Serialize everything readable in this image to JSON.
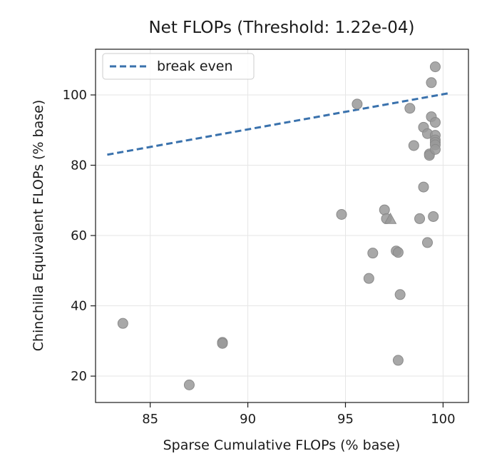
{
  "chart_data": {
    "type": "scatter",
    "title": "Net FLOPs (Threshold: 1.22e-04)",
    "xlabel": "Sparse Cumulative FLOPs (% base)",
    "ylabel": "Chinchilla Equivalent FLOPs (% base)",
    "xlim": [
      82.2,
      101.3
    ],
    "ylim": [
      12.5,
      113
    ],
    "x_ticks": [
      85,
      90,
      95,
      100
    ],
    "y_ticks": [
      20,
      40,
      60,
      80,
      100
    ],
    "grid": true,
    "legend_position": "top-left",
    "colors": {
      "points": "#999999",
      "point_edge": "#8a8a8a",
      "break_even": "#3a72ad",
      "grid": "#e6e6e6"
    },
    "lines": [
      {
        "name": "break even",
        "style": "dashed",
        "x": [
          82.8,
          100.3
        ],
        "y": [
          83.0,
          100.5
        ]
      }
    ],
    "points": [
      {
        "x": 83.6,
        "y": 35.0
      },
      {
        "x": 87.0,
        "y": 17.5
      },
      {
        "x": 88.7,
        "y": 29.6
      },
      {
        "x": 88.7,
        "y": 29.3
      },
      {
        "x": 94.8,
        "y": 66.0
      },
      {
        "x": 95.6,
        "y": 97.4
      },
      {
        "x": 96.2,
        "y": 47.8
      },
      {
        "x": 96.4,
        "y": 55.0
      },
      {
        "x": 97.0,
        "y": 67.3
      },
      {
        "x": 97.1,
        "y": 64.8
      },
      {
        "x": 97.6,
        "y": 55.6
      },
      {
        "x": 97.7,
        "y": 55.2
      },
      {
        "x": 97.7,
        "y": 24.5
      },
      {
        "x": 97.8,
        "y": 43.2
      },
      {
        "x": 98.3,
        "y": 96.2
      },
      {
        "x": 98.5,
        "y": 85.6
      },
      {
        "x": 98.8,
        "y": 64.8
      },
      {
        "x": 99.0,
        "y": 90.8
      },
      {
        "x": 99.0,
        "y": 73.8
      },
      {
        "x": 99.2,
        "y": 89.0
      },
      {
        "x": 99.2,
        "y": 58.0
      },
      {
        "x": 99.3,
        "y": 83.2
      },
      {
        "x": 99.3,
        "y": 82.8
      },
      {
        "x": 99.4,
        "y": 103.5
      },
      {
        "x": 99.4,
        "y": 93.8
      },
      {
        "x": 99.5,
        "y": 65.4
      },
      {
        "x": 99.6,
        "y": 108.0
      },
      {
        "x": 99.6,
        "y": 92.2
      },
      {
        "x": 99.6,
        "y": 88.5
      },
      {
        "x": 99.6,
        "y": 87.2
      },
      {
        "x": 99.6,
        "y": 86.5
      },
      {
        "x": 99.6,
        "y": 85.8
      },
      {
        "x": 99.6,
        "y": 84.5
      }
    ],
    "triangles": [
      {
        "x": 97.3,
        "y": 64.7
      }
    ],
    "legend": [
      {
        "label": "break even",
        "style": "dashed"
      }
    ]
  }
}
